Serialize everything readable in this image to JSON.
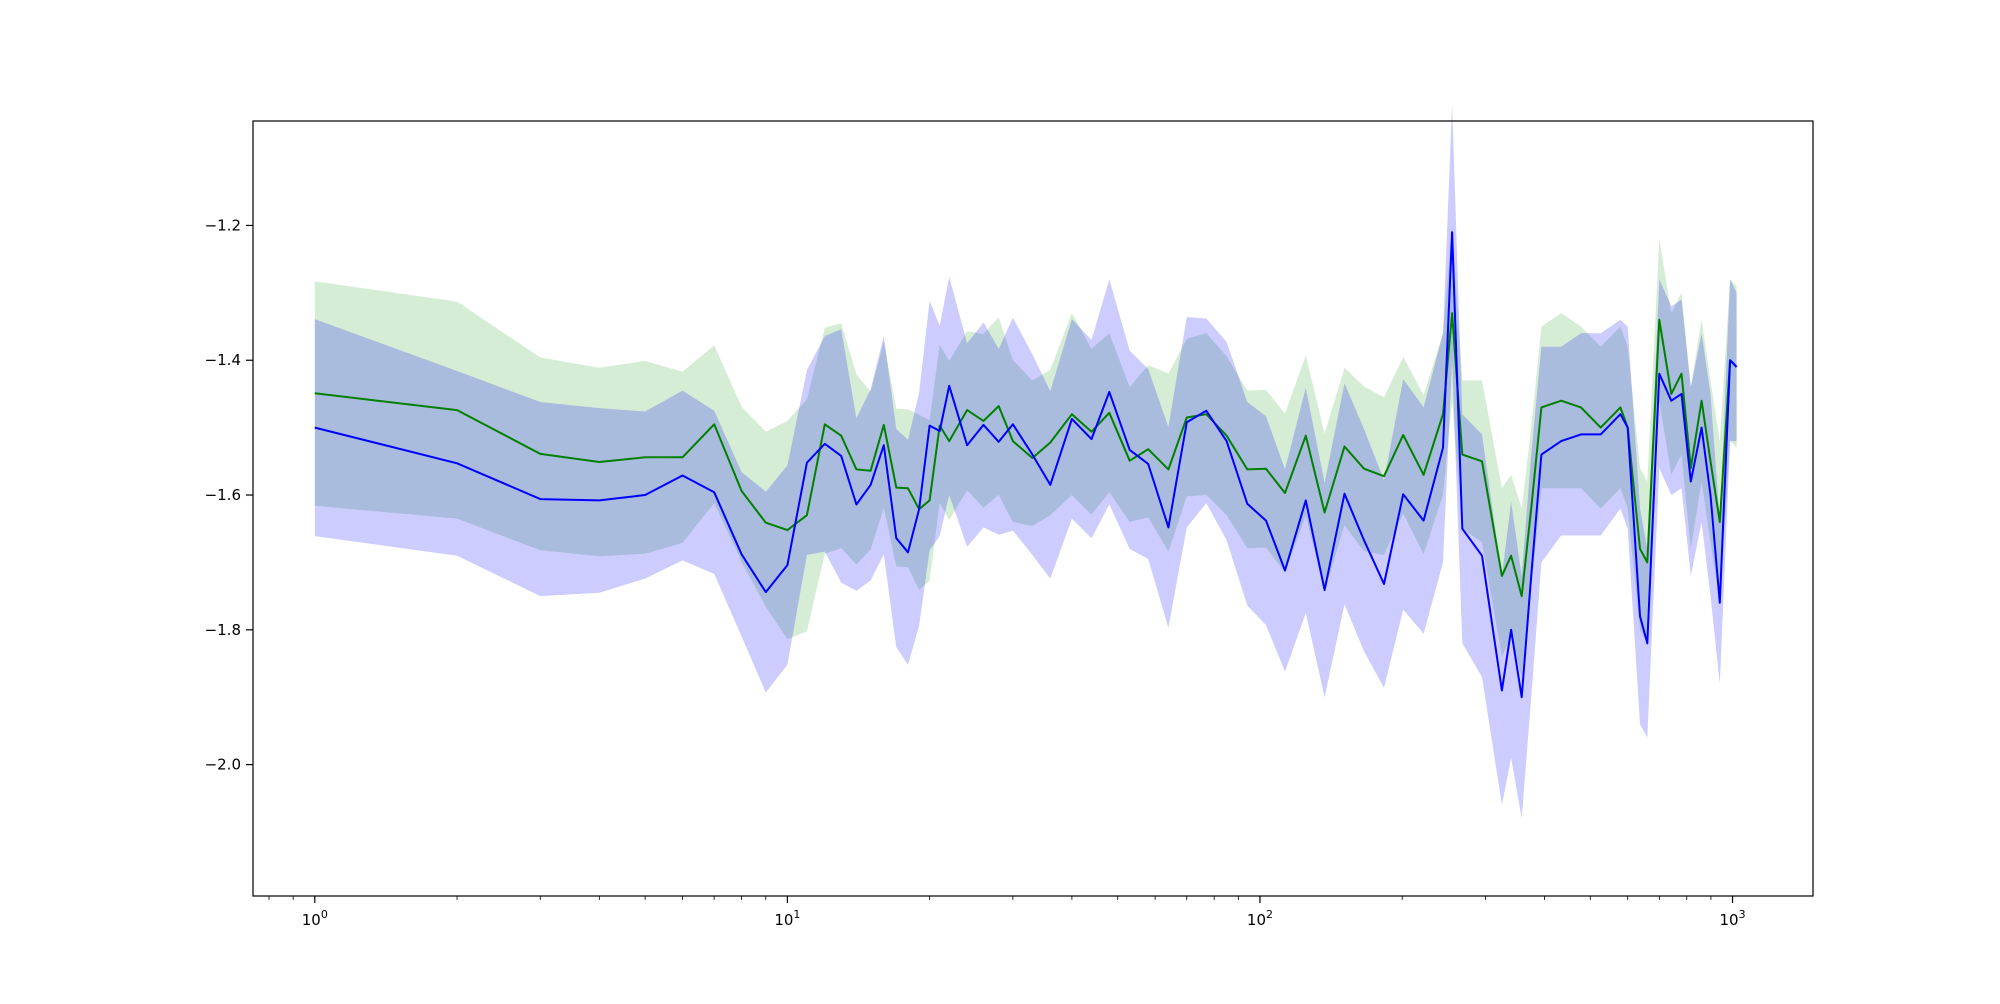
{
  "chart_data": {
    "type": "line",
    "xscale": "log",
    "xlim": [
      0.74,
      1480
    ],
    "ylim": [
      -2.195,
      -1.045
    ],
    "grid": false,
    "legend": "none",
    "x_ticks": [
      {
        "value": 1,
        "base": "10",
        "exp": "0"
      },
      {
        "value": 10,
        "base": "10",
        "exp": "1"
      },
      {
        "value": 100,
        "base": "10",
        "exp": "2"
      },
      {
        "value": 1000,
        "base": "10",
        "exp": "3"
      }
    ],
    "y_ticks": [
      {
        "value": -1.2,
        "label": "−1.2"
      },
      {
        "value": -1.4,
        "label": "−1.4"
      },
      {
        "value": -1.6,
        "label": "−1.6"
      },
      {
        "value": -1.8,
        "label": "−1.8"
      },
      {
        "value": -2.0,
        "label": "−2.0"
      }
    ],
    "series": [
      {
        "color": "#008000",
        "band_color": "#2ca02c",
        "x": [
          1,
          2,
          3,
          4,
          5,
          6,
          7,
          8,
          9,
          10,
          11,
          12,
          13,
          14,
          15,
          16,
          17,
          18,
          19,
          20,
          21,
          22,
          24,
          26,
          28,
          30,
          33,
          36,
          40,
          44,
          48,
          53,
          58,
          64,
          70,
          77,
          85,
          94,
          103,
          113,
          125,
          137,
          151,
          166,
          183,
          201,
          222,
          244,
          255,
          268,
          295,
          325,
          340,
          358,
          375,
          394,
          434,
          478,
          526,
          579,
          600,
          637,
          660,
          700,
          742,
          780,
          816,
          860,
          898,
          940,
          988,
          1020
        ],
        "values": [
          -1.449,
          -1.474,
          -1.539,
          -1.551,
          -1.544,
          -1.544,
          -1.495,
          -1.594,
          -1.641,
          -1.652,
          -1.63,
          -1.495,
          -1.512,
          -1.562,
          -1.564,
          -1.496,
          -1.589,
          -1.59,
          -1.621,
          -1.608,
          -1.497,
          -1.52,
          -1.474,
          -1.49,
          -1.468,
          -1.52,
          -1.545,
          -1.522,
          -1.48,
          -1.506,
          -1.478,
          -1.549,
          -1.532,
          -1.562,
          -1.485,
          -1.48,
          -1.512,
          -1.562,
          -1.561,
          -1.597,
          -1.512,
          -1.626,
          -1.528,
          -1.561,
          -1.572,
          -1.511,
          -1.57,
          -1.48,
          -1.33,
          -1.54,
          -1.55,
          -1.72,
          -1.69,
          -1.75,
          -1.62,
          -1.47,
          -1.46,
          -1.47,
          -1.5,
          -1.47,
          -1.5,
          -1.68,
          -1.7,
          -1.34,
          -1.45,
          -1.42,
          -1.56,
          -1.46,
          -1.55,
          -1.64,
          -1.4,
          -1.41
        ],
        "lower": [
          -1.616,
          -1.635,
          -1.682,
          -1.691,
          -1.687,
          -1.671,
          -1.612,
          -1.699,
          -1.766,
          -1.814,
          -1.802,
          -1.687,
          -1.679,
          -1.703,
          -1.681,
          -1.619,
          -1.706,
          -1.707,
          -1.741,
          -1.727,
          -1.612,
          -1.637,
          -1.593,
          -1.619,
          -1.6,
          -1.64,
          -1.646,
          -1.63,
          -1.6,
          -1.629,
          -1.596,
          -1.64,
          -1.633,
          -1.684,
          -1.602,
          -1.6,
          -1.63,
          -1.679,
          -1.678,
          -1.715,
          -1.631,
          -1.743,
          -1.645,
          -1.683,
          -1.689,
          -1.627,
          -1.688,
          -1.6,
          -1.46,
          -1.65,
          -1.67,
          -1.84,
          -1.81,
          -1.87,
          -1.74,
          -1.59,
          -1.59,
          -1.59,
          -1.62,
          -1.59,
          -1.62,
          -1.8,
          -1.82,
          -1.46,
          -1.57,
          -1.54,
          -1.68,
          -1.58,
          -1.67,
          -1.76,
          -1.52,
          -1.53
        ],
        "upper": [
          -1.283,
          -1.313,
          -1.396,
          -1.411,
          -1.401,
          -1.417,
          -1.378,
          -1.469,
          -1.506,
          -1.49,
          -1.458,
          -1.352,
          -1.345,
          -1.421,
          -1.447,
          -1.373,
          -1.472,
          -1.473,
          -1.481,
          -1.489,
          -1.377,
          -1.401,
          -1.357,
          -1.361,
          -1.336,
          -1.4,
          -1.43,
          -1.414,
          -1.33,
          -1.383,
          -1.36,
          -1.44,
          -1.407,
          -1.42,
          -1.368,
          -1.36,
          -1.394,
          -1.445,
          -1.444,
          -1.479,
          -1.393,
          -1.509,
          -1.411,
          -1.439,
          -1.455,
          -1.395,
          -1.452,
          -1.36,
          -1.2,
          -1.43,
          -1.43,
          -1.59,
          -1.57,
          -1.62,
          -1.5,
          -1.35,
          -1.33,
          -1.35,
          -1.38,
          -1.35,
          -1.38,
          -1.56,
          -1.58,
          -1.22,
          -1.33,
          -1.3,
          -1.44,
          -1.34,
          -1.43,
          -1.52,
          -1.28,
          -1.29
        ]
      },
      {
        "color": "#0000ff",
        "band_color": "#0000ff",
        "x": [
          1,
          2,
          3,
          4,
          5,
          6,
          7,
          8,
          9,
          10,
          11,
          12,
          13,
          14,
          15,
          16,
          17,
          18,
          19,
          20,
          21,
          22,
          24,
          26,
          28,
          30,
          33,
          36,
          40,
          44,
          48,
          53,
          58,
          64,
          70,
          77,
          85,
          94,
          103,
          113,
          125,
          137,
          151,
          166,
          183,
          201,
          222,
          244,
          255,
          268,
          295,
          325,
          340,
          358,
          375,
          394,
          434,
          478,
          526,
          579,
          600,
          637,
          660,
          700,
          742,
          780,
          816,
          860,
          898,
          940,
          988,
          1020
        ],
        "values": [
          -1.5,
          -1.553,
          -1.606,
          -1.608,
          -1.6,
          -1.571,
          -1.596,
          -1.688,
          -1.744,
          -1.704,
          -1.552,
          -1.524,
          -1.542,
          -1.614,
          -1.585,
          -1.526,
          -1.664,
          -1.685,
          -1.621,
          -1.497,
          -1.505,
          -1.438,
          -1.526,
          -1.496,
          -1.521,
          -1.495,
          -1.54,
          -1.585,
          -1.487,
          -1.517,
          -1.447,
          -1.533,
          -1.554,
          -1.648,
          -1.492,
          -1.475,
          -1.52,
          -1.613,
          -1.638,
          -1.712,
          -1.608,
          -1.741,
          -1.598,
          -1.667,
          -1.732,
          -1.599,
          -1.638,
          -1.53,
          -1.21,
          -1.65,
          -1.69,
          -1.89,
          -1.8,
          -1.9,
          -1.72,
          -1.54,
          -1.52,
          -1.51,
          -1.51,
          -1.48,
          -1.5,
          -1.78,
          -1.82,
          -1.42,
          -1.46,
          -1.45,
          -1.58,
          -1.5,
          -1.6,
          -1.76,
          -1.4,
          -1.41
        ],
        "lower": [
          -1.661,
          -1.69,
          -1.75,
          -1.745,
          -1.724,
          -1.697,
          -1.717,
          -1.81,
          -1.893,
          -1.852,
          -1.689,
          -1.684,
          -1.73,
          -1.742,
          -1.727,
          -1.688,
          -1.826,
          -1.852,
          -1.794,
          -1.682,
          -1.661,
          -1.6,
          -1.677,
          -1.648,
          -1.659,
          -1.653,
          -1.689,
          -1.724,
          -1.635,
          -1.664,
          -1.614,
          -1.68,
          -1.695,
          -1.797,
          -1.648,
          -1.612,
          -1.667,
          -1.764,
          -1.793,
          -1.862,
          -1.775,
          -1.9,
          -1.762,
          -1.832,
          -1.886,
          -1.77,
          -1.806,
          -1.7,
          -1.4,
          -1.82,
          -1.87,
          -2.06,
          -1.99,
          -2.08,
          -1.9,
          -1.7,
          -1.66,
          -1.66,
          -1.66,
          -1.62,
          -1.65,
          -1.94,
          -1.96,
          -1.56,
          -1.6,
          -1.59,
          -1.72,
          -1.64,
          -1.75,
          -1.88,
          -1.52,
          -1.52
        ],
        "upper": [
          -1.339,
          -1.416,
          -1.462,
          -1.471,
          -1.476,
          -1.445,
          -1.475,
          -1.566,
          -1.595,
          -1.556,
          -1.415,
          -1.364,
          -1.354,
          -1.486,
          -1.443,
          -1.364,
          -1.502,
          -1.518,
          -1.448,
          -1.312,
          -1.349,
          -1.276,
          -1.375,
          -1.344,
          -1.383,
          -1.337,
          -1.391,
          -1.446,
          -1.339,
          -1.37,
          -1.28,
          -1.386,
          -1.413,
          -1.499,
          -1.336,
          -1.338,
          -1.373,
          -1.462,
          -1.483,
          -1.562,
          -1.441,
          -1.582,
          -1.434,
          -1.502,
          -1.578,
          -1.428,
          -1.47,
          -1.36,
          -1.02,
          -1.48,
          -1.51,
          -1.72,
          -1.61,
          -1.72,
          -1.54,
          -1.38,
          -1.38,
          -1.36,
          -1.36,
          -1.34,
          -1.35,
          -1.62,
          -1.68,
          -1.28,
          -1.32,
          -1.31,
          -1.44,
          -1.36,
          -1.45,
          -1.64,
          -1.28,
          -1.3
        ]
      }
    ]
  }
}
